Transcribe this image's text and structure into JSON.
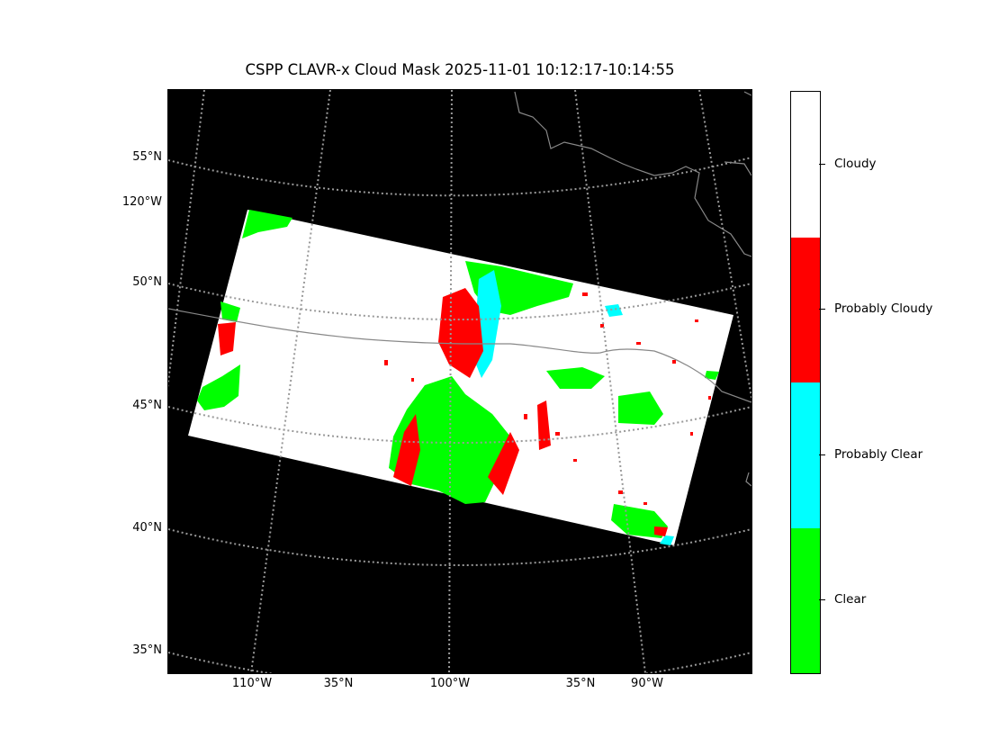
{
  "title": "CSPP CLAVR-x Cloud Mask 2025-11-01 10:12:17-10:14:55",
  "lat_labels": [
    "55°N",
    "50°N",
    "45°N",
    "40°N",
    "35°N"
  ],
  "left_lon_label": "120°W",
  "bottom_labels": [
    "110°W",
    "35°N",
    "100°W",
    "35°N",
    "90°W"
  ],
  "colorbar": {
    "categories": [
      {
        "label": "Cloudy",
        "color": "#ffffff"
      },
      {
        "label": "Probably Cloudy",
        "color": "#ff0000"
      },
      {
        "label": "Probably Clear",
        "color": "#00ffff"
      },
      {
        "label": "Clear",
        "color": "#00ff00"
      }
    ]
  },
  "map": {
    "background_color": "#000000",
    "graticule_color": "#999999",
    "border_color": "#888888"
  }
}
